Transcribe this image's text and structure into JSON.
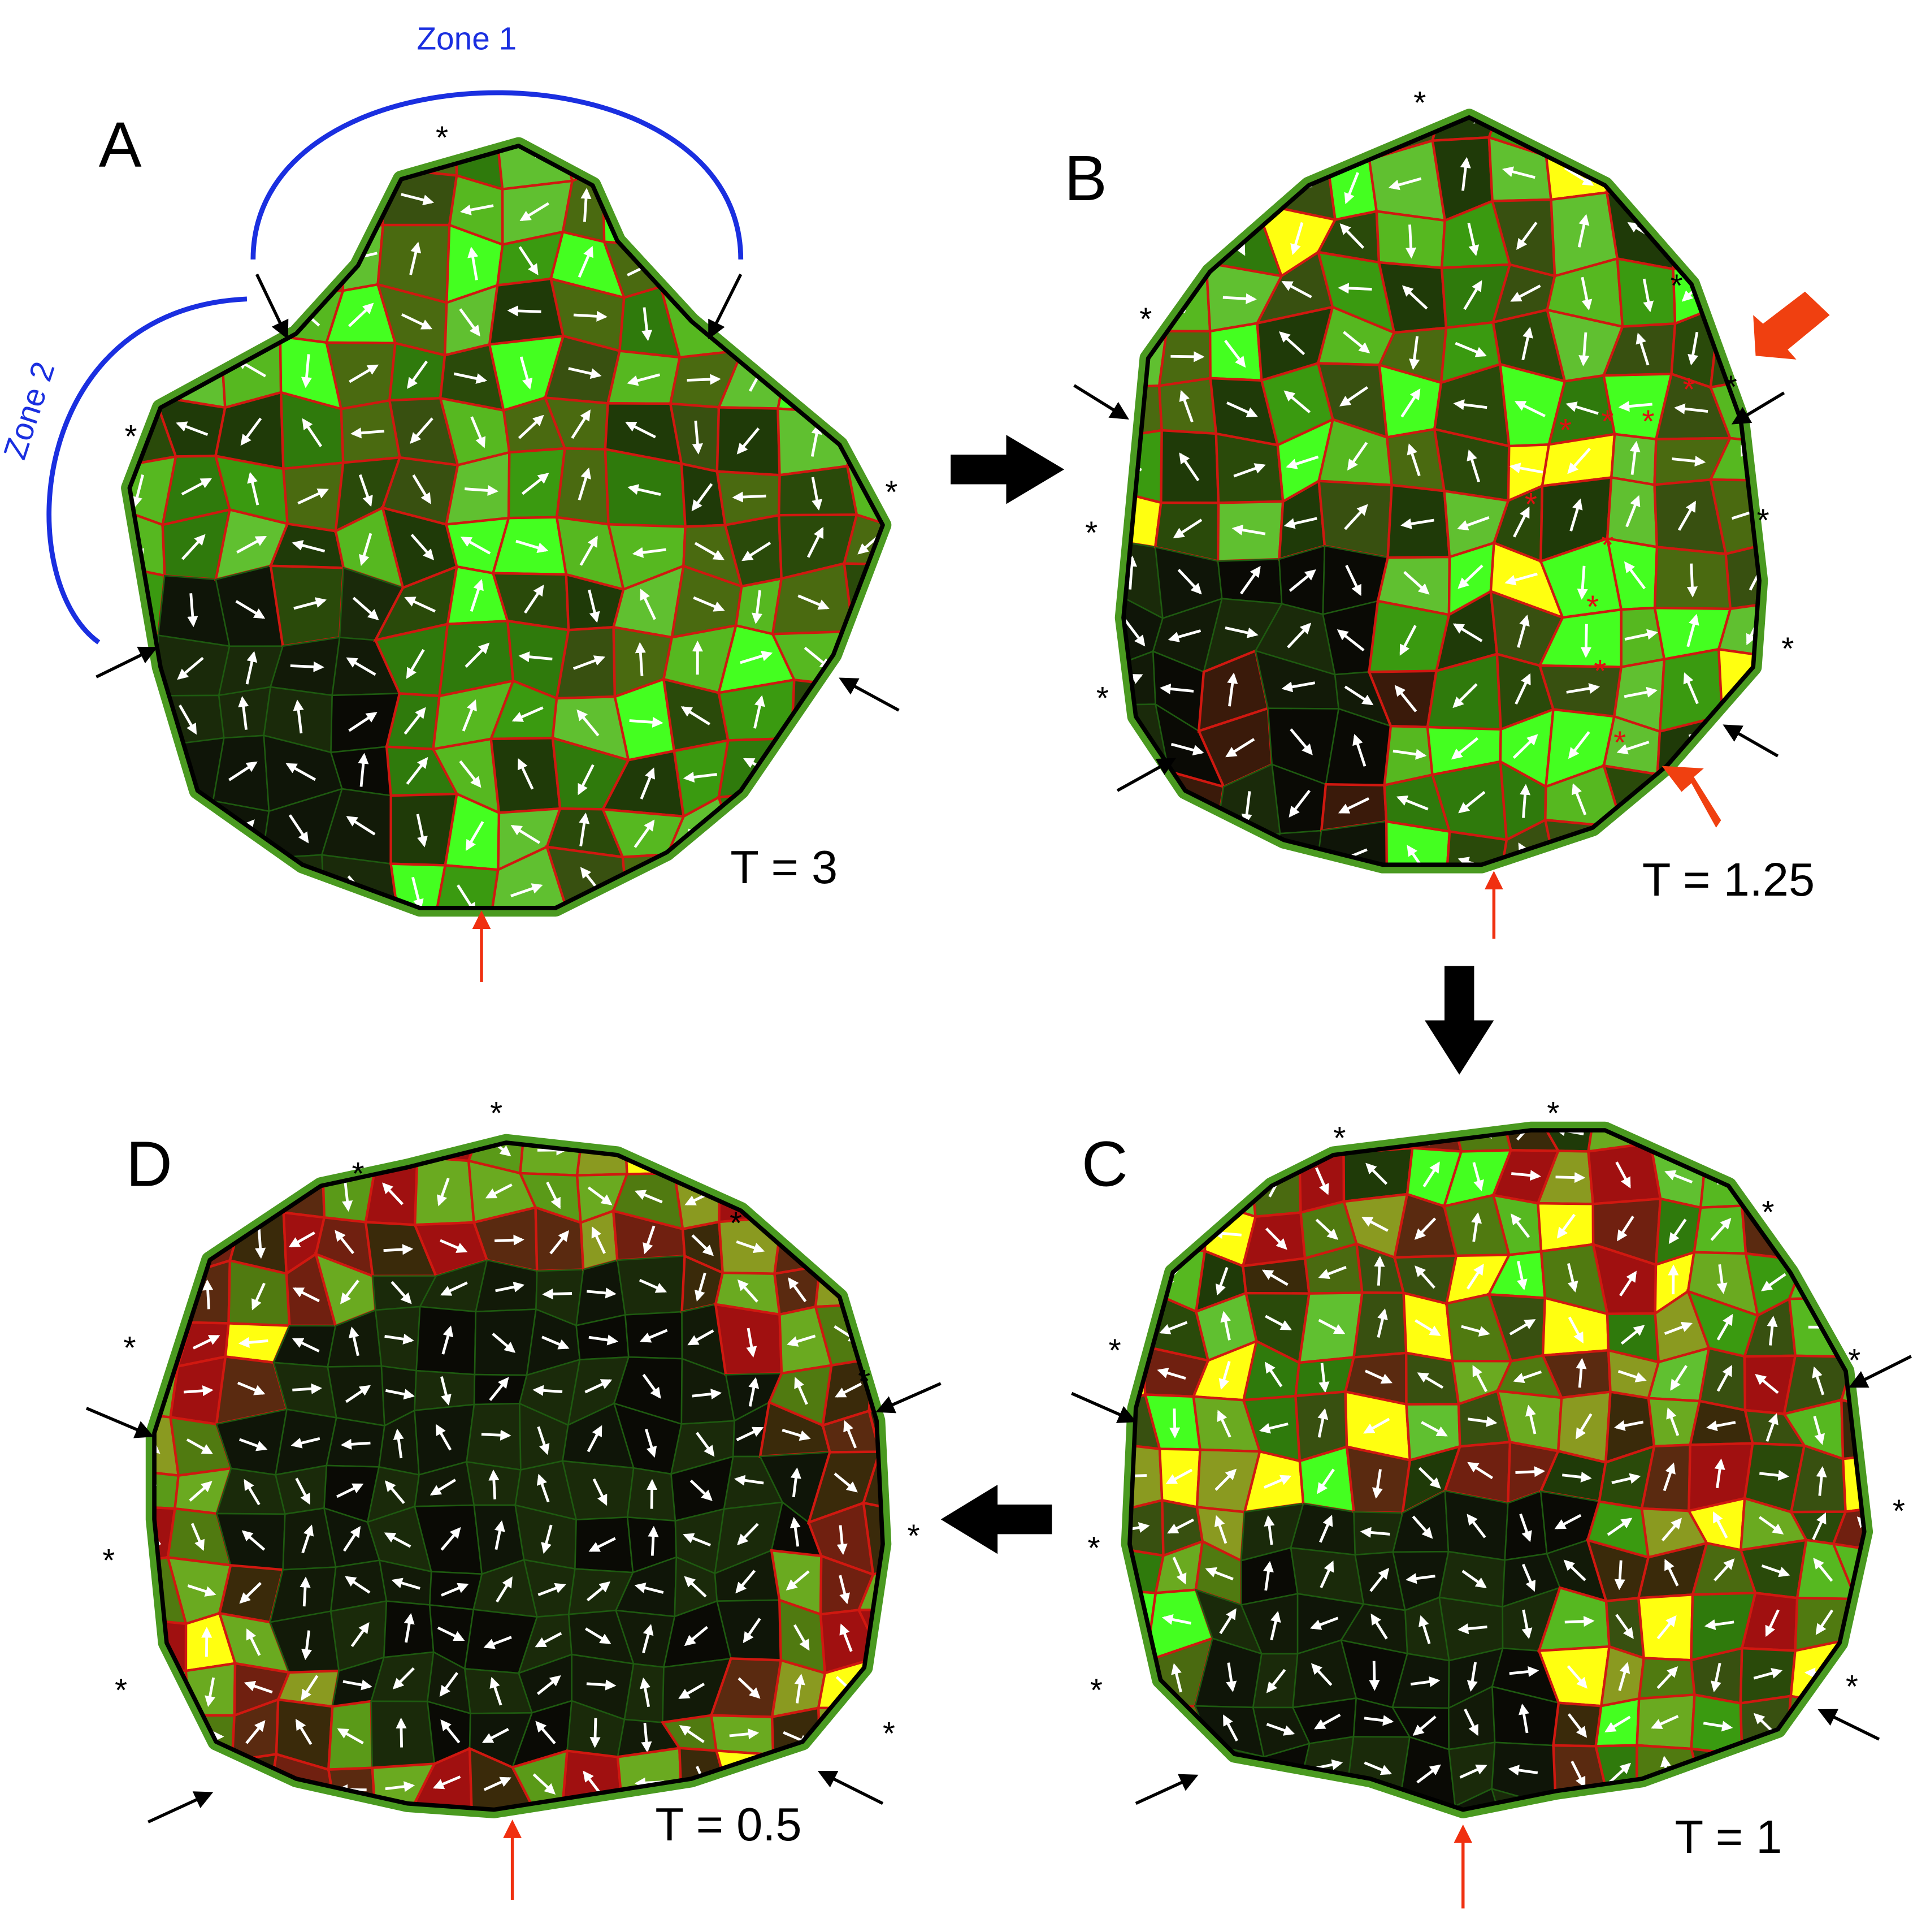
{
  "panels": [
    {
      "label": "A",
      "time": "T = 3"
    },
    {
      "label": "B",
      "time": "T = 1.25"
    },
    {
      "label": "C",
      "time": "T = 1"
    },
    {
      "label": "D",
      "time": "T = 0.5"
    }
  ],
  "zones": [
    "Zone 1",
    "Zone 2"
  ],
  "marker": "*"
}
